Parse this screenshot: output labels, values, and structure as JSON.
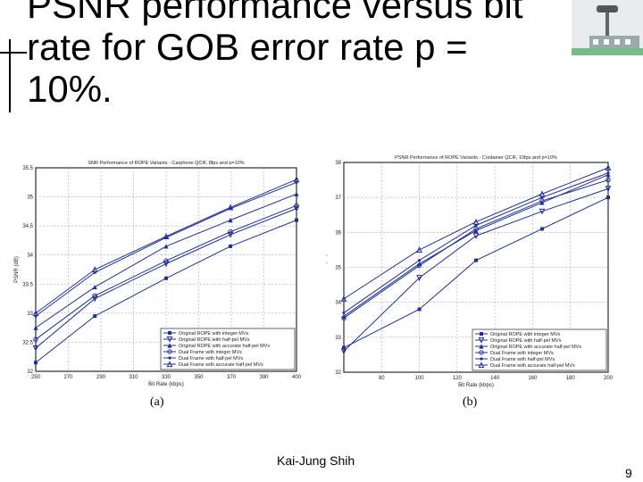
{
  "slide": {
    "title": "PSNR performance versus bit rate for GOB error rate p = 10%.",
    "footer": "Kai-Jung Shih",
    "page_number": "9",
    "sublabel_a": "(a)",
    "sublabel_b": "(b)"
  },
  "chart_data": [
    {
      "type": "line",
      "title": "SNR Performance of ROPE Variants - Carphone QCIF, 8fps and p=10%",
      "xlabel": "Bit Rate (kbps)",
      "ylabel": "PSNR (dB)",
      "xlim": [
        250,
        400
      ],
      "ylim": [
        32,
        35.5
      ],
      "xticks": [
        "250",
        "270",
        "290",
        "310",
        "330",
        "350",
        "370",
        "390",
        "400"
      ],
      "yticks": [
        "32",
        "32.5",
        "33",
        "33.5",
        "34",
        "34.5",
        "35",
        "35.5"
      ],
      "legend_position": "bottom-right",
      "grid": true,
      "series": [
        {
          "name": "Original ROPE with integer MVs",
          "x": [
            250,
            284,
            325,
            362,
            400
          ],
          "y": [
            32.15,
            32.95,
            33.6,
            34.15,
            34.6
          ]
        },
        {
          "name": "Original ROPE with half-pel MVs",
          "x": [
            250,
            284,
            325,
            362,
            400
          ],
          "y": [
            32.4,
            33.25,
            33.85,
            34.35,
            34.8
          ]
        },
        {
          "name": "Original ROPE with accurate half-pel MVs",
          "x": [
            250,
            284,
            325,
            362,
            400
          ],
          "y": [
            32.75,
            33.45,
            34.15,
            34.6,
            35.05
          ]
        },
        {
          "name": "Dual Frame with integer MVs",
          "x": [
            250,
            284,
            325,
            362,
            400
          ],
          "y": [
            32.55,
            33.3,
            33.9,
            34.4,
            34.85
          ]
        },
        {
          "name": "Dual Frame with half-pel MVs",
          "x": [
            250,
            284,
            325,
            362,
            400
          ],
          "y": [
            32.95,
            33.7,
            34.3,
            34.8,
            35.25
          ]
        },
        {
          "name": "Dual Frame with accurate half-pel MVs",
          "x": [
            250,
            284,
            325,
            362,
            400
          ],
          "y": [
            33.0,
            33.75,
            34.32,
            34.82,
            35.3
          ]
        }
      ]
    },
    {
      "type": "line",
      "title": "PSNR Performance of ROPE Variants - Container QCIF, 10fps and p=10%",
      "xlabel": "Bit Rate (kbps)",
      "ylabel": "PSNR (dB)",
      "xlim": [
        60,
        200
      ],
      "ylim": [
        32,
        38
      ],
      "xticks": [
        "80",
        "100",
        "120",
        "140",
        "160",
        "180",
        "200"
      ],
      "yticks": [
        "32",
        "33",
        "34",
        "35",
        "36",
        "37",
        "38"
      ],
      "legend_position": "bottom-right",
      "grid": true,
      "series": [
        {
          "name": "Original ROPE with integer MVs",
          "x": [
            60,
            100,
            130,
            165,
            200
          ],
          "y": [
            32.7,
            33.8,
            35.2,
            36.1,
            37.0
          ]
        },
        {
          "name": "Original ROPE with half-pel MVs",
          "x": [
            60,
            100,
            130,
            165,
            200
          ],
          "y": [
            32.6,
            34.7,
            35.9,
            36.6,
            37.25
          ]
        },
        {
          "name": "Original ROPE with accurate half-pel MVs",
          "x": [
            60,
            100,
            130,
            165,
            200
          ],
          "y": [
            33.6,
            35.1,
            36.05,
            36.85,
            37.65
          ]
        },
        {
          "name": "Dual Frame with integer MVs",
          "x": [
            60,
            100,
            130,
            165,
            200
          ],
          "y": [
            33.55,
            35.05,
            36.1,
            36.9,
            37.5
          ]
        },
        {
          "name": "Dual Frame with half-pel MVs",
          "x": [
            60,
            100,
            130,
            165,
            200
          ],
          "y": [
            33.7,
            35.2,
            36.2,
            37.0,
            37.7
          ]
        },
        {
          "name": "Dual Frame with accurate half-pel MVs",
          "x": [
            60,
            100,
            130,
            165,
            200
          ],
          "y": [
            34.1,
            35.5,
            36.3,
            37.1,
            37.85
          ]
        }
      ]
    }
  ],
  "colors": {
    "line": "#1f2f9a",
    "grid": "#9a9a9a",
    "text": "#222222"
  }
}
